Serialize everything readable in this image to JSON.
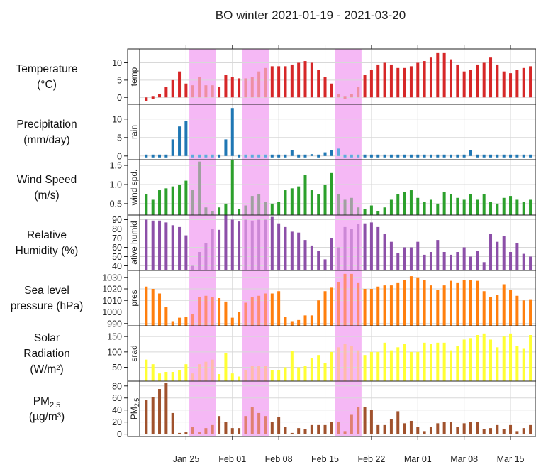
{
  "chart_data": {
    "type": "bar",
    "title": "BO winter 2021-01-19 - 2021-03-20",
    "x_tick_labels": [
      "Jan 25",
      "Feb 01",
      "Feb 08",
      "Feb 15",
      "Feb 22",
      "Mar 01",
      "Mar 08",
      "Mar 15"
    ],
    "x_ticks": [
      "2021-01-25",
      "2021-02-01",
      "2021-02-08",
      "2021-02-15",
      "2021-02-22",
      "2021-03-01",
      "2021-03-08",
      "2021-03-15"
    ],
    "x_start": "2021-01-19",
    "x_range": [
      "2021-01-18",
      "2021-03-20"
    ],
    "highlight_periods": [
      [
        "2021-01-26",
        "2021-01-29"
      ],
      [
        "2021-02-03",
        "2021-02-06"
      ],
      [
        "2021-02-17",
        "2021-02-20"
      ]
    ],
    "highlight_color": "#f5b8f5",
    "grid": true,
    "panels": [
      {
        "label": "Temperature\n(°C)",
        "strip": "temp",
        "color": "#d62728",
        "shaded_color": "#ee8fa3",
        "ylim": [
          -2,
          14
        ],
        "yticks": [
          0,
          5,
          10
        ],
        "values": [
          -1,
          0,
          1,
          3,
          5,
          7.5,
          4,
          3.5,
          6,
          3.5,
          3.5,
          3,
          6.5,
          6,
          5.5,
          5.5,
          6,
          7.5,
          8.5,
          9,
          9,
          9,
          9.5,
          10,
          10.5,
          10,
          8,
          6,
          4,
          1,
          0,
          1,
          3,
          6.5,
          8,
          9.5,
          10,
          9.5,
          8.5,
          8.5,
          9,
          10,
          10.5,
          11.5,
          13,
          13,
          11,
          9.5,
          7.5,
          8,
          9.5,
          10,
          11.5,
          9.5,
          7.5,
          7,
          8,
          8.5,
          9,
          10.5,
          12,
          12.5,
          11.5,
          10,
          8.5,
          7,
          6,
          5
        ]
      },
      {
        "label": "Precipitation\n(mm/day)",
        "strip": "rain",
        "color": "#1f77b4",
        "shaded_color": "#5fa8e0",
        "ylim": [
          -1,
          14
        ],
        "yticks": [
          0,
          5,
          10
        ],
        "values": [
          0,
          0,
          0,
          0,
          4.5,
          8,
          9.5,
          0,
          0,
          0,
          0,
          0,
          4.5,
          13,
          0,
          0,
          0,
          0,
          0,
          0,
          0,
          0,
          1.5,
          0,
          0,
          0.5,
          0,
          1,
          1.5,
          2,
          0,
          0,
          0,
          0,
          0,
          0,
          0,
          0,
          0,
          0,
          0,
          0,
          0,
          0,
          0,
          0,
          0,
          0,
          0,
          1.5,
          0,
          0,
          0,
          0,
          0,
          0,
          0,
          0,
          0,
          0,
          0,
          0,
          0,
          0,
          7,
          0,
          0,
          0
        ]
      },
      {
        "label": "Wind Speed\n(m/s)",
        "strip": "wind spd.",
        "color": "#2ca02c",
        "shaded_color": "#a0a0a0",
        "ylim": [
          0.2,
          1.65
        ],
        "yticks": [
          0.5,
          1.0,
          1.5
        ],
        "values": [
          0.75,
          0.6,
          0.85,
          0.9,
          0.95,
          1.0,
          1.1,
          0.85,
          1.6,
          0.4,
          0.3,
          0.4,
          0.5,
          1.65,
          0.35,
          0.45,
          0.7,
          0.75,
          0.55,
          0.5,
          0.55,
          0.85,
          0.9,
          0.95,
          1.25,
          0.85,
          0.75,
          1.0,
          1.3,
          0.75,
          0.6,
          0.65,
          0.4,
          0.35,
          0.45,
          0.3,
          0.4,
          0.6,
          0.75,
          0.8,
          0.85,
          0.65,
          0.55,
          0.6,
          0.5,
          0.8,
          0.75,
          0.65,
          0.6,
          0.75,
          0.6,
          0.75,
          0.55,
          0.5,
          0.65,
          0.7,
          0.6,
          0.55,
          0.6,
          0.75,
          1.0,
          1.3,
          1.15,
          1.1,
          0.85,
          0.65,
          0.6,
          0.65
        ]
      },
      {
        "label": "Relative\nHumidity (%)",
        "strip": "ative humid",
        "color": "#8c4fa8",
        "shaded_color": "#cc88d6",
        "ylim": [
          35,
          95
        ],
        "yticks": [
          40,
          50,
          60,
          70,
          80,
          90
        ],
        "values": [
          90,
          89,
          89,
          87,
          84,
          82,
          73,
          40,
          55,
          65,
          80,
          79,
          95,
          90,
          88,
          90,
          89,
          90,
          90,
          93,
          86,
          82,
          77,
          76,
          68,
          62,
          56,
          47,
          70,
          60,
          82,
          80,
          85,
          86,
          87,
          82,
          75,
          66,
          54,
          60,
          60,
          66,
          52,
          55,
          68,
          55,
          52,
          55,
          60,
          50,
          56,
          44,
          75,
          66,
          72,
          55,
          65,
          53,
          50,
          80,
          72,
          49,
          42,
          46,
          68,
          54,
          47,
          48
        ]
      },
      {
        "label": "Sea level\npressure (hPa)",
        "strip": "pres",
        "color": "#ff7f0e",
        "shaded_color": "#ff8c73",
        "ylim": [
          988,
          1036
        ],
        "yticks": [
          990,
          1000,
          1010,
          1020,
          1030
        ],
        "values": [
          1022,
          1020,
          1016,
          1004,
          992,
          995,
          996,
          998,
          1013,
          1014,
          1013,
          1012,
          1009,
          995,
          1000,
          1008,
          1013,
          1014,
          1016,
          1016,
          1018,
          996,
          992,
          993,
          997,
          997,
          1010,
          1018,
          1021,
          1026,
          1033,
          1033,
          1025,
          1020,
          1020,
          1022,
          1023,
          1023,
          1025,
          1028,
          1031,
          1030,
          1028,
          1023,
          1019,
          1023,
          1027,
          1025,
          1028,
          1028,
          1027,
          1018,
          1013,
          1015,
          1024,
          1019,
          1014,
          1010,
          1011,
          1006,
          1002,
          1005,
          1008,
          1012,
          1013,
          1014,
          1014,
          1014
        ]
      },
      {
        "label": "Solar\nRadiation\n(W/m²)",
        "strip": "srad",
        "color": "#ffff33",
        "shaded_color": "#ffbbaa",
        "ylim": [
          5,
          185
        ],
        "yticks": [
          50,
          100,
          150
        ],
        "values": [
          75,
          60,
          30,
          35,
          35,
          40,
          60,
          30,
          60,
          68,
          75,
          28,
          95,
          30,
          20,
          40,
          55,
          55,
          55,
          40,
          40,
          50,
          102,
          50,
          55,
          80,
          90,
          65,
          100,
          115,
          125,
          120,
          105,
          90,
          100,
          100,
          130,
          105,
          115,
          125,
          100,
          100,
          130,
          125,
          130,
          130,
          105,
          120,
          140,
          145,
          155,
          160,
          140,
          115,
          150,
          160,
          120,
          110,
          155,
          120,
          160,
          90,
          130,
          150,
          165,
          160,
          150,
          145
        ]
      },
      {
        "label": "PM2.5\n(µg/m³)",
        "strip": "PM2.5",
        "color": "#a0522d",
        "shaded_color": "#e08070",
        "ylim": [
          -4,
          88
        ],
        "yticks": [
          0,
          20,
          40,
          60,
          80
        ],
        "values": [
          57,
          62,
          75,
          85,
          35,
          2,
          3,
          12,
          3,
          10,
          15,
          30,
          20,
          10,
          10,
          30,
          45,
          35,
          30,
          20,
          28,
          12,
          2,
          10,
          8,
          15,
          15,
          15,
          20,
          20,
          5,
          32,
          45,
          45,
          40,
          15,
          15,
          25,
          38,
          18,
          22,
          12,
          5,
          12,
          18,
          20,
          20,
          12,
          18,
          20,
          20,
          8,
          10,
          15,
          8,
          15,
          5,
          10,
          15,
          25,
          5,
          7,
          0,
          3,
          8,
          10,
          10,
          12
        ]
      }
    ]
  }
}
